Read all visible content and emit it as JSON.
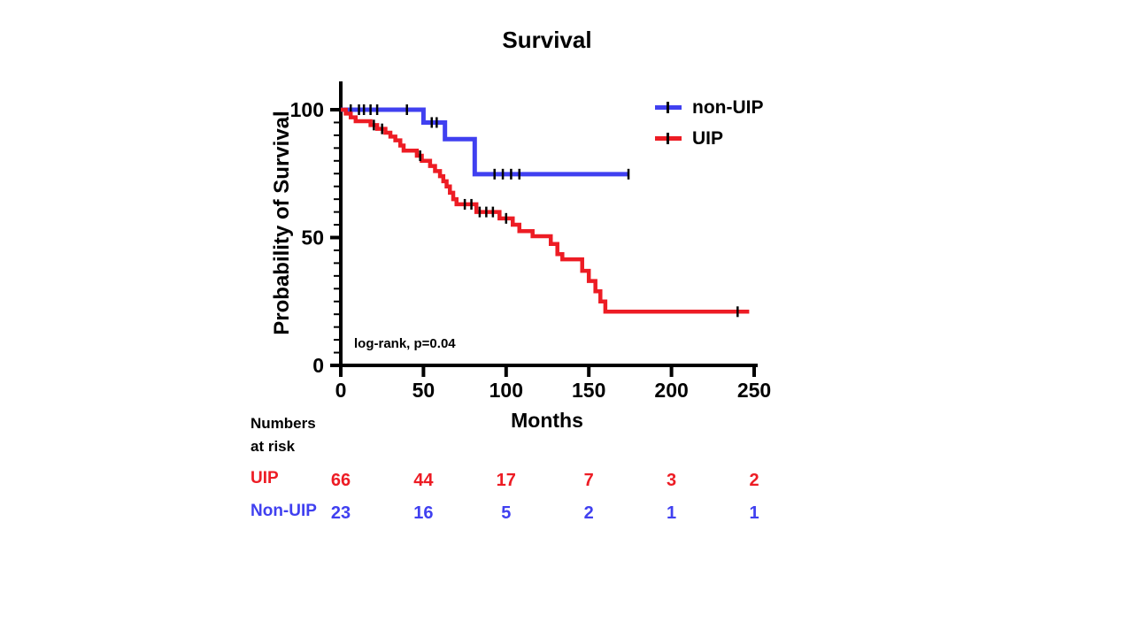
{
  "page": {
    "background": "#ffffff"
  },
  "chart_data": {
    "type": "line",
    "subtype": "kaplan-meier-step",
    "title": "Survival",
    "xlabel": "Months",
    "ylabel": "Probability of Survival",
    "annotation": "log-rank, p=0.04",
    "xlim": [
      0,
      250
    ],
    "ylim": [
      0,
      100
    ],
    "x_ticks": [
      0,
      50,
      100,
      150,
      200,
      250
    ],
    "y_ticks": [
      0,
      50,
      100
    ],
    "y_minor_step": 5,
    "grid": "off",
    "legend_position": "top-right-inside",
    "legend": [
      {
        "label": "non-UIP",
        "color": "#4040f0"
      },
      {
        "label": "UIP",
        "color": "#ed1c24"
      }
    ],
    "series": [
      {
        "name": "non-UIP",
        "color": "#4040f0",
        "stroke_width": 5,
        "steps": [
          [
            0,
            100
          ],
          [
            50,
            95
          ],
          [
            63,
            88.5
          ],
          [
            81,
            74.8
          ]
        ],
        "end": 174,
        "censors": [
          [
            6,
            100
          ],
          [
            11,
            100
          ],
          [
            14,
            100
          ],
          [
            18,
            100
          ],
          [
            22,
            100
          ],
          [
            40,
            100
          ],
          [
            55,
            95
          ],
          [
            58,
            95
          ],
          [
            93,
            74.8
          ],
          [
            98,
            74.8
          ],
          [
            103,
            74.8
          ],
          [
            108,
            74.8
          ],
          [
            174,
            74.8
          ]
        ]
      },
      {
        "name": "UIP",
        "color": "#ed1c24",
        "stroke_width": 4.5,
        "steps": [
          [
            0,
            100
          ],
          [
            3,
            98.5
          ],
          [
            6,
            97
          ],
          [
            9,
            95.5
          ],
          [
            18,
            94
          ],
          [
            22,
            92.5
          ],
          [
            27,
            91
          ],
          [
            30,
            89.5
          ],
          [
            33,
            88
          ],
          [
            36,
            86
          ],
          [
            38,
            84
          ],
          [
            46,
            82
          ],
          [
            49,
            80
          ],
          [
            54,
            78
          ],
          [
            57,
            76
          ],
          [
            60,
            74
          ],
          [
            62,
            72
          ],
          [
            64,
            70
          ],
          [
            66,
            67.5
          ],
          [
            68,
            65
          ],
          [
            70,
            63
          ],
          [
            82,
            60
          ],
          [
            96,
            57.5
          ],
          [
            104,
            55
          ],
          [
            108,
            52.5
          ],
          [
            116,
            50.5
          ],
          [
            127,
            47.5
          ],
          [
            131,
            43.5
          ],
          [
            134,
            41.5
          ],
          [
            146,
            37
          ],
          [
            150,
            33
          ],
          [
            154,
            29
          ],
          [
            157,
            25
          ],
          [
            160,
            21
          ]
        ],
        "end": 247,
        "censors": [
          [
            20,
            94
          ],
          [
            25,
            92.5
          ],
          [
            48,
            82
          ],
          [
            75,
            63
          ],
          [
            79,
            63
          ],
          [
            84,
            60
          ],
          [
            88,
            60
          ],
          [
            92,
            60
          ],
          [
            100,
            57.5
          ],
          [
            240,
            21
          ]
        ]
      }
    ]
  },
  "risk_table": {
    "header_line1": "Numbers",
    "header_line2": "at risk",
    "months": [
      0,
      50,
      100,
      150,
      200,
      250
    ],
    "rows": [
      {
        "label": "UIP",
        "color": "#ed1c24",
        "values": [
          66,
          44,
          17,
          7,
          3,
          2
        ]
      },
      {
        "label": "Non-UIP",
        "color": "#4040f0",
        "values": [
          23,
          16,
          5,
          2,
          1,
          1
        ]
      }
    ]
  }
}
